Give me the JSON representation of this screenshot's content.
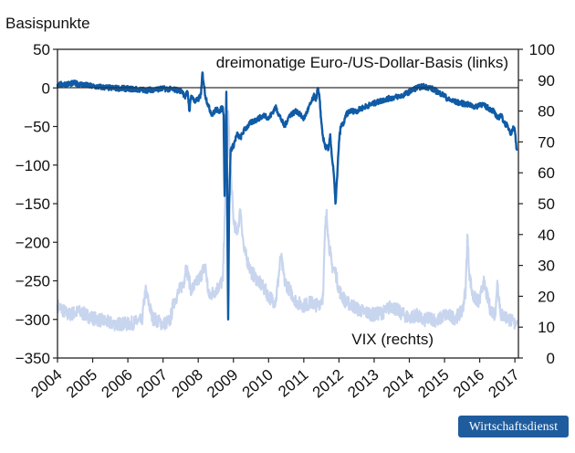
{
  "brand": "Wirtschaftsdienst",
  "chart_data": {
    "type": "line",
    "title": "",
    "ylabel_left": "Basispunkte",
    "ylabel_right": "",
    "xlabel": "",
    "x_ticks": [
      "2004",
      "2005",
      "2006",
      "2007",
      "2008",
      "2009",
      "2010",
      "2011",
      "2012",
      "2013",
      "2014",
      "2015",
      "2016",
      "2017"
    ],
    "ylim_left": [
      -350,
      50
    ],
    "yticks_left": [
      50,
      0,
      -50,
      -100,
      -150,
      -200,
      -250,
      -300,
      -350
    ],
    "ylim_right": [
      0,
      100
    ],
    "yticks_right": [
      100,
      90,
      80,
      70,
      60,
      50,
      40,
      30,
      20,
      10,
      0
    ],
    "annotations": {
      "basis_label": "dreimonatige Euro-/US-Dollar-Basis (links)",
      "vix_label": "VIX (rechts)"
    },
    "series": [
      {
        "name": "dreimonatige Euro-/US-Dollar-Basis (links)",
        "axis": "left",
        "color": "#0f5ba6",
        "x": [
          2004.0,
          2004.5,
          2005.0,
          2005.5,
          2006.0,
          2006.5,
          2007.0,
          2007.3,
          2007.55,
          2007.62,
          2007.7,
          2007.75,
          2007.8,
          2007.9,
          2008.0,
          2008.08,
          2008.12,
          2008.2,
          2008.3,
          2008.4,
          2008.5,
          2008.6,
          2008.7,
          2008.72,
          2008.75,
          2008.8,
          2008.85,
          2008.88,
          2008.92,
          2009.0,
          2009.1,
          2009.2,
          2009.3,
          2009.5,
          2009.7,
          2009.9,
          2010.0,
          2010.2,
          2010.35,
          2010.45,
          2010.6,
          2010.8,
          2011.0,
          2011.1,
          2011.2,
          2011.3,
          2011.35,
          2011.4,
          2011.45,
          2011.5,
          2011.55,
          2011.6,
          2011.7,
          2011.75,
          2011.8,
          2011.85,
          2011.9,
          2011.95,
          2012.0,
          2012.05,
          2012.15,
          2012.2,
          2012.3,
          2012.5,
          2012.7,
          2013.0,
          2013.3,
          2013.6,
          2013.8,
          2014.0,
          2014.2,
          2014.4,
          2014.6,
          2014.8,
          2015.0,
          2015.1,
          2015.3,
          2015.5,
          2015.7,
          2015.9,
          2016.0,
          2016.2,
          2016.4,
          2016.5,
          2016.6,
          2016.7,
          2016.8,
          2016.85,
          2016.9,
          2016.95,
          2017.0,
          2017.05
        ],
        "values": [
          4,
          6,
          2,
          0,
          -1,
          -3,
          -1,
          -2,
          -4,
          -12,
          -5,
          -30,
          -10,
          -18,
          -15,
          -8,
          20,
          -10,
          -25,
          -35,
          -28,
          -30,
          -25,
          -35,
          -140,
          -5,
          -300,
          -150,
          -80,
          -75,
          -60,
          -65,
          -55,
          -45,
          -40,
          -35,
          -40,
          -25,
          -40,
          -50,
          -35,
          -30,
          -40,
          -30,
          -20,
          -10,
          -15,
          0,
          -15,
          -45,
          -65,
          -75,
          -80,
          -60,
          -90,
          -110,
          -150,
          -115,
          -70,
          -50,
          -45,
          -35,
          -30,
          -30,
          -25,
          -20,
          -15,
          -12,
          -10,
          -5,
          0,
          2,
          0,
          -5,
          -10,
          -15,
          -18,
          -20,
          -22,
          -25,
          -20,
          -25,
          -30,
          -40,
          -35,
          -45,
          -50,
          -55,
          -60,
          -50,
          -55,
          -80
        ]
      },
      {
        "name": "VIX (rechts)",
        "axis": "right",
        "color": "#c8d5ee",
        "x": [
          2004.0,
          2004.3,
          2004.6,
          2005.0,
          2005.3,
          2005.6,
          2006.0,
          2006.4,
          2006.5,
          2006.7,
          2007.0,
          2007.2,
          2007.3,
          2007.6,
          2007.65,
          2007.8,
          2008.0,
          2008.2,
          2008.3,
          2008.5,
          2008.7,
          2008.75,
          2008.8,
          2008.85,
          2008.9,
          2009.0,
          2009.1,
          2009.2,
          2009.3,
          2009.5,
          2009.7,
          2009.9,
          2010.0,
          2010.2,
          2010.35,
          2010.45,
          2010.6,
          2010.8,
          2011.0,
          2011.2,
          2011.4,
          2011.55,
          2011.6,
          2011.65,
          2011.7,
          2011.8,
          2011.9,
          2012.0,
          2012.2,
          2012.4,
          2012.5,
          2012.7,
          2013.0,
          2013.3,
          2013.5,
          2013.7,
          2014.0,
          2014.2,
          2014.4,
          2014.6,
          2014.8,
          2015.0,
          2015.3,
          2015.5,
          2015.6,
          2015.65,
          2015.7,
          2015.8,
          2016.0,
          2016.1,
          2016.3,
          2016.45,
          2016.5,
          2016.6,
          2016.8,
          2016.9,
          2017.0,
          2017.05
        ],
        "values": [
          17,
          14,
          15,
          13,
          12,
          11,
          11,
          12,
          22,
          13,
          11,
          12,
          18,
          25,
          30,
          22,
          25,
          30,
          20,
          22,
          25,
          45,
          60,
          80,
          65,
          45,
          40,
          48,
          35,
          28,
          25,
          22,
          20,
          18,
          33,
          25,
          22,
          18,
          17,
          18,
          17,
          20,
          40,
          48,
          38,
          30,
          28,
          22,
          18,
          17,
          16,
          15,
          14,
          15,
          17,
          15,
          13,
          14,
          12,
          13,
          12,
          14,
          13,
          15,
          22,
          40,
          28,
          20,
          18,
          25,
          16,
          14,
          25,
          14,
          13,
          12,
          11,
          12
        ]
      }
    ]
  }
}
